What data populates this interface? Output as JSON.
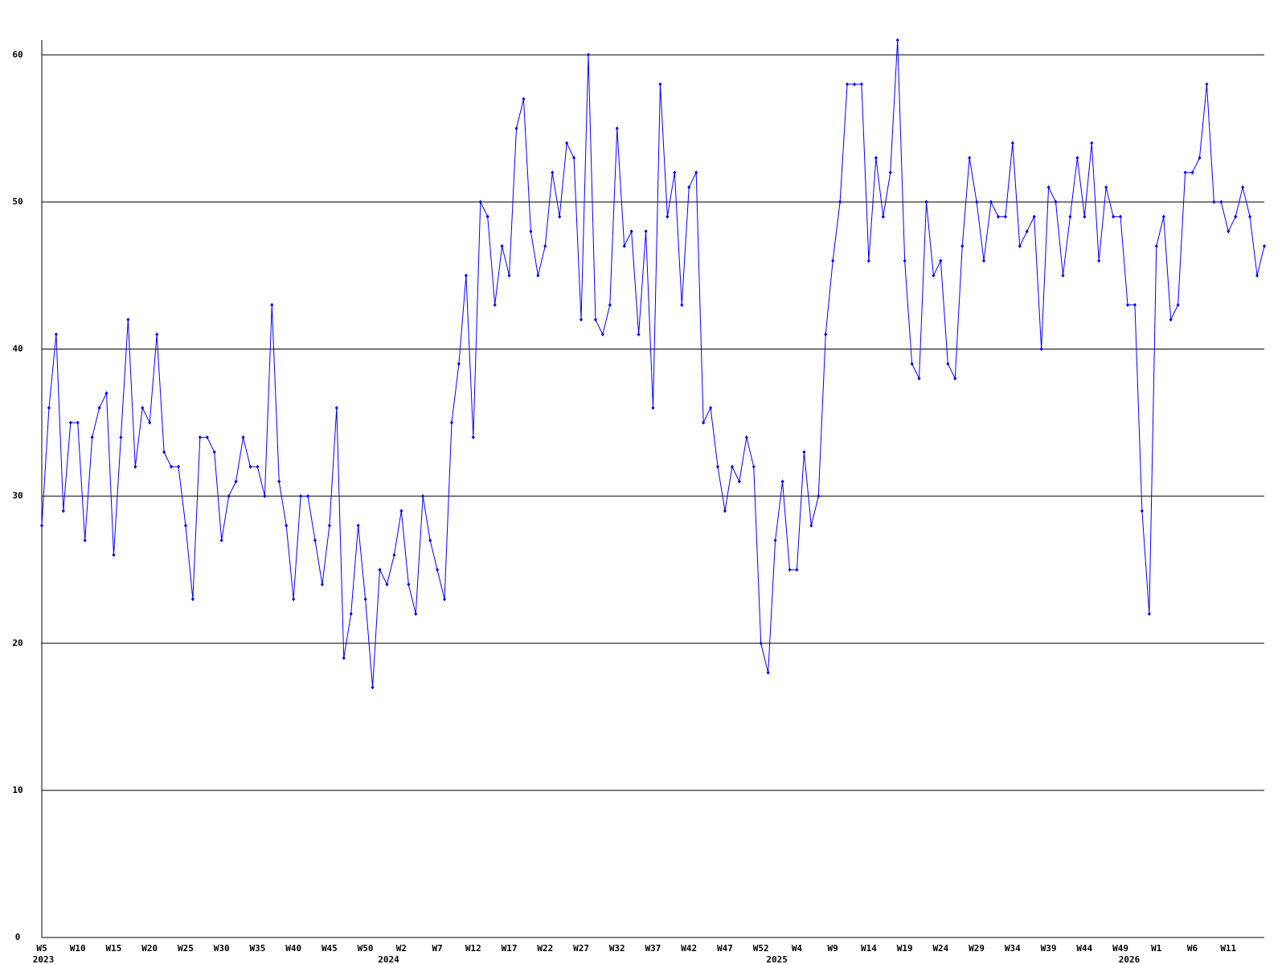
{
  "chart_data": {
    "type": "line",
    "color": "#0000ff",
    "ylim": [
      0,
      61
    ],
    "yticks": [
      0,
      10,
      20,
      30,
      40,
      50,
      60
    ],
    "grid": true,
    "categories": [
      "W5",
      null,
      null,
      null,
      null,
      "W10",
      null,
      null,
      null,
      null,
      "W15",
      null,
      null,
      null,
      null,
      "W20",
      null,
      null,
      null,
      null,
      "W25",
      null,
      null,
      null,
      null,
      "W30",
      null,
      null,
      null,
      null,
      "W35",
      null,
      null,
      null,
      null,
      "W40",
      null,
      null,
      null,
      null,
      "W45",
      null,
      null,
      null,
      null,
      "W50",
      null,
      null,
      null,
      null,
      "W2",
      null,
      null,
      null,
      null,
      "W7",
      null,
      null,
      null,
      null,
      "W12",
      null,
      null,
      null,
      null,
      "W17",
      null,
      null,
      null,
      null,
      "W22",
      null,
      null,
      null,
      null,
      "W27",
      null,
      null,
      null,
      null,
      "W32",
      null,
      null,
      null,
      null,
      "W37",
      null,
      null,
      null,
      null,
      "W42",
      null,
      null,
      null,
      null,
      "W47",
      null,
      null,
      null,
      null,
      "W52",
      null,
      null,
      null,
      null,
      "W4",
      null,
      null,
      null,
      null,
      "W9",
      null,
      null,
      null,
      null,
      "W14",
      null,
      null,
      null,
      null,
      "W19",
      null,
      null,
      null,
      null,
      "W24",
      null,
      null,
      null,
      null,
      "W29",
      null,
      null,
      null,
      null,
      "W34",
      null,
      null,
      null,
      null,
      "W39",
      null,
      null,
      null,
      null,
      "W44",
      null,
      null,
      null,
      null,
      "W49",
      null,
      null,
      null,
      null,
      "W1",
      null,
      null,
      null,
      null,
      "W6",
      null,
      null,
      null,
      null,
      "W11",
      null,
      null,
      null,
      null,
      null
    ],
    "years": [
      "2023",
      null,
      null,
      null,
      null,
      null,
      null,
      null,
      null,
      null,
      null,
      null,
      null,
      null,
      null,
      null,
      null,
      null,
      null,
      null,
      null,
      null,
      null,
      null,
      null,
      null,
      null,
      null,
      null,
      null,
      null,
      null,
      null,
      null,
      null,
      null,
      null,
      null,
      null,
      null,
      null,
      null,
      null,
      null,
      null,
      null,
      null,
      null,
      "2024",
      null,
      null,
      null,
      null,
      null,
      null,
      null,
      null,
      null,
      null,
      null,
      null,
      null,
      null,
      null,
      null,
      null,
      null,
      null,
      null,
      null,
      null,
      null,
      null,
      null,
      null,
      null,
      null,
      null,
      null,
      null,
      null,
      null,
      null,
      null,
      null,
      null,
      null,
      null,
      null,
      null,
      null,
      null,
      null,
      null,
      null,
      null,
      null,
      null,
      null,
      null,
      null,
      null,
      "2025",
      null,
      null,
      null,
      null,
      null,
      null,
      null,
      null,
      null,
      null,
      null,
      null,
      null,
      null,
      null,
      null,
      null,
      null,
      null,
      null,
      null,
      null,
      null,
      null,
      null,
      null,
      null,
      null,
      null,
      null,
      null,
      null,
      null,
      null,
      null,
      null,
      null,
      null,
      null,
      null,
      null,
      null,
      null,
      null,
      null,
      null,
      null,
      null,
      "2026",
      null,
      null,
      null,
      null,
      null,
      null,
      null,
      null,
      null,
      null,
      null,
      null,
      null,
      null,
      null
    ],
    "values": [
      28,
      36,
      41,
      29,
      35,
      35,
      27,
      34,
      36,
      37,
      26,
      34,
      42,
      32,
      36,
      35,
      41,
      33,
      32,
      32,
      28,
      23,
      34,
      34,
      33,
      27,
      30,
      31,
      34,
      32,
      32,
      30,
      43,
      31,
      28,
      23,
      30,
      30,
      27,
      24,
      28,
      36,
      19,
      22,
      28,
      23,
      17,
      25,
      24,
      26,
      29,
      24,
      22,
      30,
      27,
      25,
      23,
      35,
      39,
      45,
      34,
      50,
      49,
      43,
      47,
      45,
      55,
      57,
      48,
      45,
      47,
      52,
      49,
      54,
      53,
      42,
      60,
      42,
      41,
      43,
      55,
      47,
      48,
      41,
      48,
      36,
      58,
      49,
      52,
      43,
      51,
      52,
      35,
      36,
      32,
      29,
      32,
      31,
      34,
      32,
      20,
      18,
      27,
      31,
      25,
      25,
      33,
      28,
      30,
      41,
      46,
      50,
      58,
      58,
      58,
      46,
      53,
      49,
      52,
      61,
      46,
      39,
      38,
      50,
      45,
      46,
      39,
      38,
      47,
      53,
      50,
      46,
      50,
      49,
      49,
      54,
      47,
      48,
      49,
      40,
      51,
      50,
      45,
      49,
      53,
      49,
      54,
      46,
      51,
      49,
      49,
      43,
      43,
      29,
      22,
      47,
      49,
      42,
      43,
      52,
      52,
      53,
      58,
      50,
      50,
      48,
      49,
      51,
      49,
      45,
      47
    ]
  }
}
